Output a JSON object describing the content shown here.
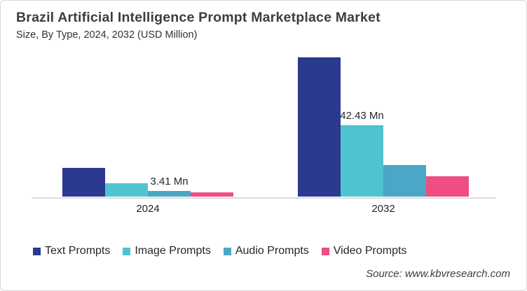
{
  "header": {
    "title": "Brazil Artificial Intelligence Prompt Marketplace Market",
    "subtitle": "Size, By Type, 2024, 2032 (USD Million)"
  },
  "footer": {
    "source": "Source: www.kbvresearch.com"
  },
  "chart_data": {
    "type": "bar",
    "title": "Brazil Artificial Intelligence Prompt Marketplace Market Size, By Type, 2024, 2032 (USD Million)",
    "categories": [
      "2024",
      "2032"
    ],
    "series": [
      {
        "name": "Text Prompts",
        "color": "#2b3a8e",
        "values": [
          17,
          83
        ]
      },
      {
        "name": "Image Prompts",
        "color": "#4ec4d1",
        "values": [
          8,
          42.43
        ]
      },
      {
        "name": "Audio Prompts",
        "color": "#4aa7c6",
        "values": [
          3.41,
          18.8
        ]
      },
      {
        "name": "Video Prompts",
        "color": "#ee4e81",
        "values": [
          2.4,
          12.2
        ]
      }
    ],
    "data_labels": [
      {
        "series_index": 2,
        "category_index": 0,
        "text": "3.41 Mn"
      },
      {
        "series_index": 1,
        "category_index": 1,
        "text": "42.43 Mn"
      }
    ],
    "xlabel": "",
    "ylabel": "USD Million",
    "unit": "Mn",
    "ylim": [
      0,
      85
    ],
    "grid": false,
    "y_axis_visible": false,
    "legend_position": "bottom"
  }
}
